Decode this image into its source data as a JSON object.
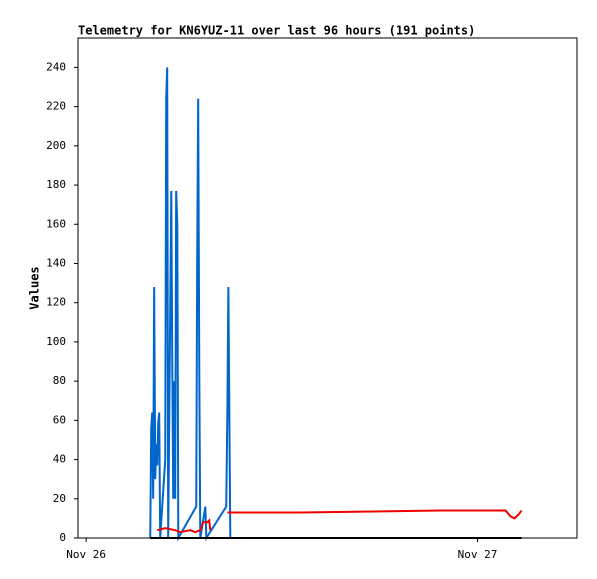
{
  "chart_data": {
    "type": "line",
    "title": "Telemetry for KN6YUZ-11 over last 96 hours (191 points)",
    "y_label": "Values",
    "xlim": [
      -0.5,
      30.1
    ],
    "xticks": [
      {
        "value": 0,
        "label": "Nov 26"
      },
      {
        "value": 24,
        "label": "Nov 27"
      }
    ],
    "ylim": [
      0,
      255
    ],
    "yticks": [
      0,
      20,
      40,
      60,
      80,
      100,
      120,
      140,
      160,
      180,
      200,
      220,
      240
    ],
    "series": [
      {
        "color": "#0066cc",
        "x": [
          3.93,
          3.99,
          4.05,
          4.11,
          4.17,
          4.24,
          4.3,
          4.36,
          4.42,
          4.48,
          4.54,
          4.85,
          4.91,
          4.97,
          5.03,
          5.22,
          5.28,
          5.34,
          5.4,
          5.46,
          5.52,
          5.59,
          5.65,
          6.75,
          6.81,
          6.87,
          6.94,
          7.0,
          7.31,
          7.37,
          8.59,
          8.66,
          8.72,
          8.78,
          8.84
        ],
        "values": [
          0,
          56,
          64,
          20,
          128,
          30,
          48,
          37,
          59,
          64,
          0,
          40,
          224,
          240,
          0,
          177,
          88,
          20,
          80,
          20,
          177,
          160,
          0,
          16,
          144,
          224,
          80,
          0,
          16,
          0,
          16,
          64,
          128,
          64,
          0
        ]
      },
      {
        "color": "#ee0000",
        "x": [
          4.36,
          4.85,
          5.46,
          5.77,
          6.38,
          6.69,
          7.0,
          7.18,
          7.43,
          7.55,
          7.61,
          8.0,
          8.66,
          13.14,
          21.73,
          25.72,
          26.03,
          26.27,
          26.52,
          26.7
        ],
        "values": [
          4,
          5,
          4,
          3,
          4,
          3,
          4,
          8,
          8,
          9,
          4,
          null,
          13,
          13,
          14,
          14,
          11,
          10,
          12,
          14
        ]
      },
      {
        "color": "#000000",
        "x": [
          3.93,
          26.7
        ],
        "values": [
          0,
          0
        ]
      }
    ]
  }
}
